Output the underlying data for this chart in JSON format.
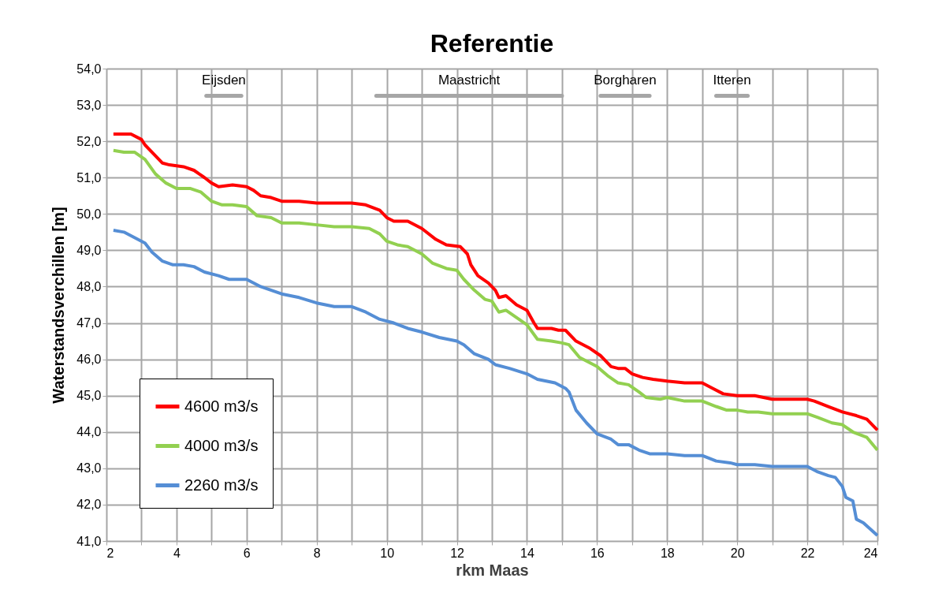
{
  "chart_data": {
    "type": "line",
    "title": "Referentie",
    "xlabel": "rkm Maas",
    "ylabel": "Waterstandsverchillen [m]",
    "xlim": [
      2,
      24
    ],
    "xticks": [
      2,
      {
        "value": 3,
        "label": null
      },
      4,
      {
        "value": 5,
        "label": null
      },
      6,
      {
        "value": 7,
        "label": null
      },
      8,
      {
        "value": 9,
        "label": null
      },
      10,
      {
        "value": 11,
        "label": null
      },
      12,
      {
        "value": 13,
        "label": null
      },
      14,
      {
        "value": 15,
        "label": null
      },
      16,
      {
        "value": 17,
        "label": null
      },
      18,
      {
        "value": 19,
        "label": null
      },
      20,
      {
        "value": 21,
        "label": null
      },
      22,
      {
        "value": 23,
        "label": null
      },
      24
    ],
    "ylim": [
      41,
      54
    ],
    "yticks": [
      {
        "value": 41,
        "label": "41,0"
      },
      {
        "value": 42,
        "label": "42,0"
      },
      {
        "value": 43,
        "label": "43,0"
      },
      {
        "value": 44,
        "label": "44,0"
      },
      {
        "value": 45,
        "label": "45,0"
      },
      {
        "value": 46,
        "label": "46,0"
      },
      {
        "value": 47,
        "label": "47,0"
      },
      {
        "value": 48,
        "label": "48,0"
      },
      {
        "value": 49,
        "label": "49,0"
      },
      {
        "value": 50,
        "label": "50,0"
      },
      {
        "value": 51,
        "label": "51,0"
      },
      {
        "value": 52,
        "label": "52,0"
      },
      {
        "value": 53,
        "label": "53,0"
      },
      {
        "value": 54,
        "label": "54,0"
      }
    ],
    "grid": true,
    "legend": "bottom left",
    "marker": "none",
    "line_style": "solid",
    "series": [
      {
        "name": "Eijsden",
        "type": "line",
        "color": "#a6a6a6",
        "x": [
          4.85,
          5.85
        ],
        "values": [
          53.25,
          53.25
        ]
      },
      {
        "name": "Maastricht",
        "type": "line",
        "color": "#a6a6a6",
        "x": [
          9.7,
          15.0
        ],
        "values": [
          53.25,
          53.25
        ]
      },
      {
        "name": "Borgharen",
        "type": "line",
        "color": "#a6a6a6",
        "x": [
          16.1,
          17.5
        ],
        "values": [
          53.25,
          53.25
        ]
      },
      {
        "name": "Itteren",
        "type": "line",
        "color": "#a6a6a6",
        "x": [
          19.4,
          20.3
        ],
        "values": [
          53.25,
          53.25
        ]
      },
      {
        "name": "4600 m3/s",
        "color": "#ff0000",
        "x": [
          2.2,
          2.5,
          2.7,
          3.0,
          3.1,
          3.4,
          3.6,
          3.8,
          4.2,
          4.5,
          4.8,
          5.0,
          5.2,
          5.6,
          6.0,
          6.2,
          6.4,
          6.7,
          7.0,
          7.5,
          8.0,
          8.5,
          9.0,
          9.4,
          9.8,
          10.0,
          10.2,
          10.6,
          11.0,
          11.4,
          11.7,
          12.1,
          12.3,
          12.4,
          12.6,
          12.9,
          13.1,
          13.2,
          13.4,
          13.7,
          14.0,
          14.2,
          14.3,
          14.7,
          14.9,
          15.1,
          15.4,
          15.8,
          16.1,
          16.4,
          16.6,
          16.8,
          17.0,
          17.3,
          17.6,
          18.0,
          18.5,
          19.0,
          19.3,
          19.6,
          20.0,
          20.5,
          21.0,
          21.5,
          22.0,
          22.2,
          22.6,
          23.0,
          23.4,
          23.7,
          24.0
        ],
        "values": [
          52.2,
          52.2,
          52.2,
          52.05,
          51.9,
          51.6,
          51.4,
          51.35,
          51.3,
          51.2,
          51.0,
          50.85,
          50.75,
          50.8,
          50.75,
          50.65,
          50.5,
          50.45,
          50.35,
          50.35,
          50.3,
          50.3,
          50.3,
          50.25,
          50.1,
          49.9,
          49.8,
          49.8,
          49.6,
          49.3,
          49.15,
          49.1,
          48.9,
          48.6,
          48.3,
          48.1,
          47.9,
          47.7,
          47.75,
          47.5,
          47.35,
          47.0,
          46.85,
          46.85,
          46.8,
          46.8,
          46.5,
          46.3,
          46.1,
          45.8,
          45.75,
          45.75,
          45.6,
          45.5,
          45.45,
          45.4,
          45.35,
          45.35,
          45.2,
          45.05,
          45.0,
          45.0,
          44.9,
          44.9,
          44.9,
          44.85,
          44.7,
          44.55,
          44.45,
          44.35,
          44.05
        ]
      },
      {
        "name": "4000 m3/s",
        "color": "#92d050",
        "x": [
          2.2,
          2.5,
          2.8,
          3.1,
          3.4,
          3.7,
          4.0,
          4.4,
          4.7,
          5.0,
          5.3,
          5.6,
          6.0,
          6.3,
          6.7,
          7.0,
          7.5,
          8.0,
          8.5,
          9.0,
          9.5,
          9.8,
          10.0,
          10.3,
          10.6,
          11.0,
          11.3,
          11.7,
          12.0,
          12.2,
          12.5,
          12.8,
          13.0,
          13.2,
          13.4,
          13.7,
          14.0,
          14.3,
          14.7,
          15.0,
          15.2,
          15.5,
          16.0,
          16.3,
          16.6,
          16.9,
          17.2,
          17.4,
          17.8,
          18.0,
          18.5,
          19.0,
          19.4,
          19.7,
          20.0,
          20.3,
          20.6,
          21.0,
          21.5,
          22.0,
          22.3,
          22.7,
          23.0,
          23.3,
          23.7,
          24.0
        ],
        "values": [
          51.75,
          51.7,
          51.7,
          51.5,
          51.1,
          50.85,
          50.7,
          50.7,
          50.6,
          50.35,
          50.25,
          50.25,
          50.2,
          49.95,
          49.9,
          49.75,
          49.75,
          49.7,
          49.65,
          49.65,
          49.6,
          49.45,
          49.25,
          49.15,
          49.1,
          48.9,
          48.65,
          48.5,
          48.45,
          48.2,
          47.9,
          47.65,
          47.6,
          47.3,
          47.35,
          47.15,
          46.95,
          46.55,
          46.5,
          46.45,
          46.4,
          46.05,
          45.8,
          45.55,
          45.35,
          45.3,
          45.1,
          44.95,
          44.9,
          44.95,
          44.85,
          44.85,
          44.7,
          44.6,
          44.6,
          44.55,
          44.55,
          44.5,
          44.5,
          44.5,
          44.4,
          44.25,
          44.2,
          44.0,
          43.85,
          43.5
        ]
      },
      {
        "name": "2260 m3/s",
        "color": "#558ed5",
        "x": [
          2.2,
          2.5,
          2.8,
          3.1,
          3.3,
          3.6,
          3.9,
          4.2,
          4.5,
          4.8,
          5.2,
          5.5,
          6.0,
          6.4,
          7.0,
          7.5,
          8.0,
          8.5,
          9.0,
          9.4,
          9.8,
          10.2,
          10.6,
          11.0,
          11.5,
          12.0,
          12.2,
          12.5,
          12.9,
          13.1,
          13.5,
          14.0,
          14.3,
          14.8,
          15.1,
          15.2,
          15.4,
          15.7,
          16.0,
          16.4,
          16.6,
          16.9,
          17.2,
          17.5,
          18.0,
          18.5,
          19.0,
          19.4,
          19.8,
          20.0,
          20.5,
          21.0,
          22.0,
          22.3,
          22.6,
          22.8,
          23.0,
          23.1,
          23.3,
          23.4,
          23.6,
          24.0
        ],
        "values": [
          49.55,
          49.5,
          49.35,
          49.2,
          48.95,
          48.7,
          48.6,
          48.6,
          48.55,
          48.4,
          48.3,
          48.2,
          48.2,
          48.0,
          47.8,
          47.7,
          47.55,
          47.45,
          47.45,
          47.3,
          47.1,
          47.0,
          46.85,
          46.75,
          46.6,
          46.5,
          46.4,
          46.15,
          46.0,
          45.85,
          45.75,
          45.6,
          45.45,
          45.35,
          45.2,
          45.1,
          44.6,
          44.25,
          43.95,
          43.8,
          43.65,
          43.65,
          43.5,
          43.4,
          43.4,
          43.35,
          43.35,
          43.2,
          43.15,
          43.1,
          43.1,
          43.05,
          43.05,
          42.9,
          42.8,
          42.75,
          42.5,
          42.2,
          42.1,
          41.6,
          41.5,
          41.15
        ]
      }
    ]
  }
}
